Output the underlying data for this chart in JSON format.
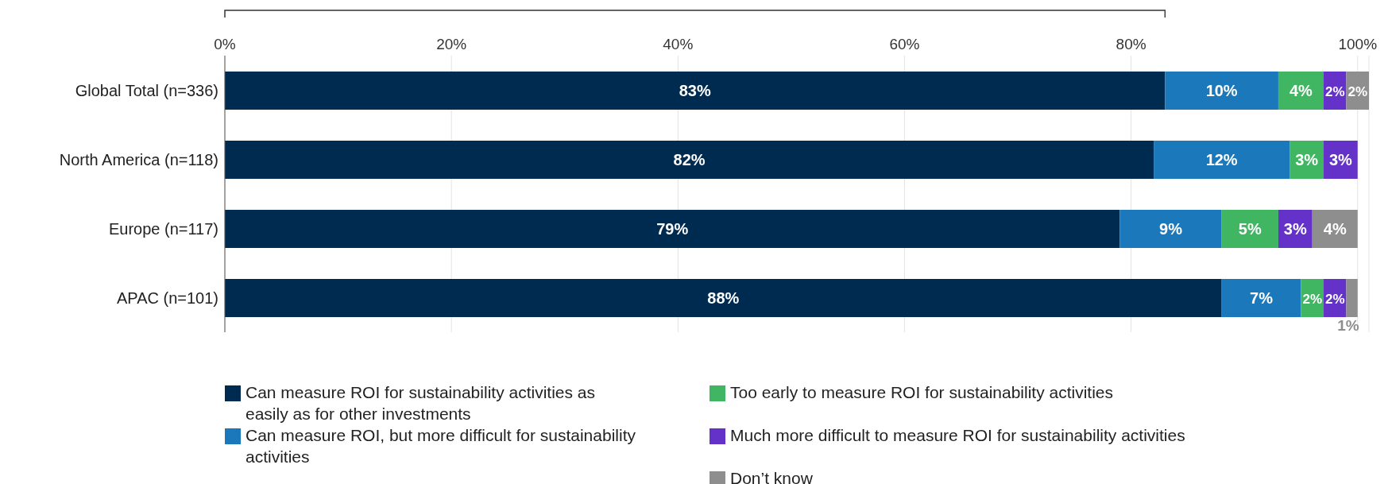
{
  "chart_data": {
    "type": "bar",
    "orientation": "horizontal",
    "stacked": true,
    "categories": [
      "Global Total (n=336)",
      "North America (n=118)",
      "Europe (n=117)",
      "APAC (n=101)"
    ],
    "series": [
      {
        "name": "Can measure ROI for sustainability activities as easily as for other investments",
        "color": "#002b50",
        "values": [
          83,
          82,
          79,
          88
        ],
        "value_labels": [
          "83%",
          "82%",
          "79%",
          "88%"
        ]
      },
      {
        "name": "Can measure ROI, but more difficult for sustainability activities",
        "color": "#1a78bb",
        "values": [
          10,
          12,
          9,
          7
        ],
        "value_labels": [
          "10%",
          "12%",
          "9%",
          "7%"
        ]
      },
      {
        "name": "Too early to measure ROI for sustainability activities",
        "color": "#40b562",
        "values": [
          4,
          3,
          5,
          2
        ],
        "value_labels": [
          "4%",
          "3%",
          "5%",
          "2%"
        ]
      },
      {
        "name": "Much more difficult to measure ROI for sustainability activities",
        "color": "#6532c9",
        "values": [
          2,
          3,
          3,
          2
        ],
        "value_labels": [
          "2%",
          "3%",
          "3%",
          "2%"
        ]
      },
      {
        "name": "Don’t know",
        "color": "#8e8e8e",
        "values": [
          2,
          null,
          4,
          1
        ],
        "value_labels": [
          "2%",
          null,
          "4%",
          "1%"
        ]
      }
    ],
    "xlim": [
      0,
      101
    ],
    "xticks": [
      {
        "value": 0,
        "label": "0%"
      },
      {
        "value": 20,
        "label": "20%"
      },
      {
        "value": 40,
        "label": "40%"
      },
      {
        "value": 60,
        "label": "60%"
      },
      {
        "value": 80,
        "label": "80%"
      },
      {
        "value": 100,
        "label": "100%"
      }
    ],
    "grid": "x",
    "legend": "bottom"
  }
}
